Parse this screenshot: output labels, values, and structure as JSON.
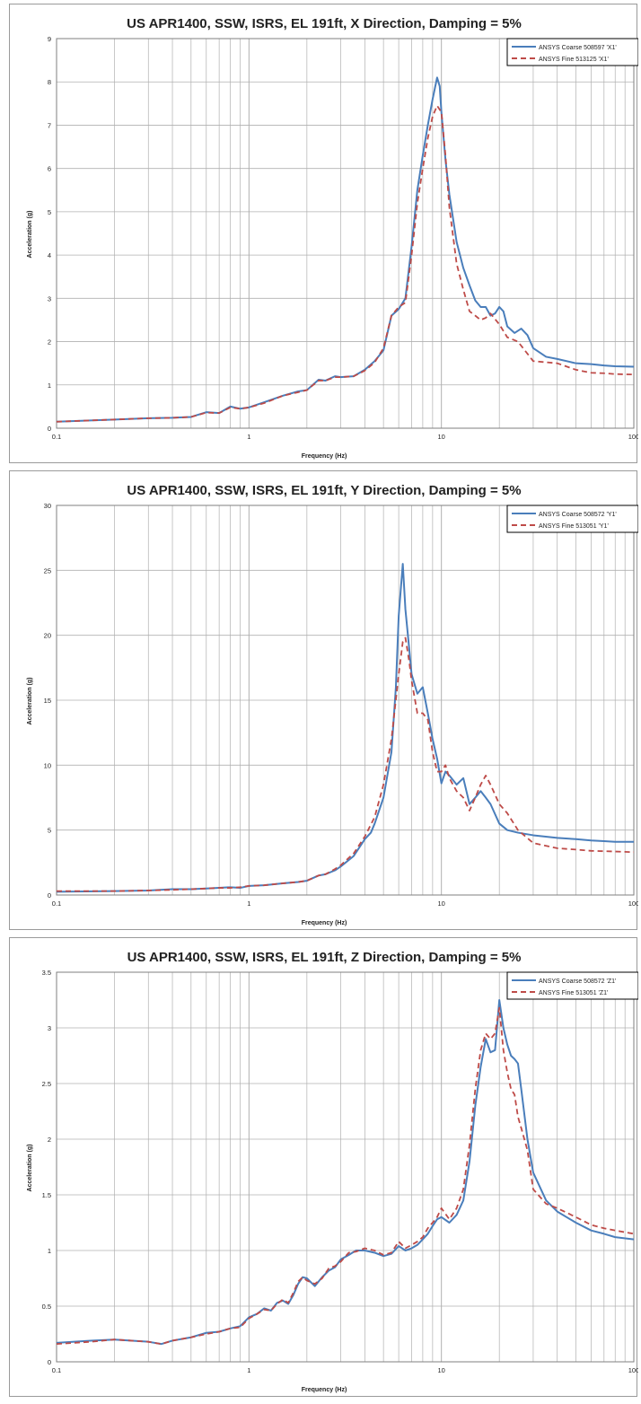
{
  "colors": {
    "coarse": "#4a7ebb",
    "fine": "#be4b48",
    "grid": "#b0b0b0"
  },
  "chart_data": [
    {
      "type": "line",
      "title": "US APR1400,  SSW, ISRS, EL 191ft, X Direction, Damping = 5%",
      "xlabel": "Frequency (Hz)",
      "ylabel": "Acceleration (g)",
      "xscale": "log",
      "xlim": [
        0.1,
        100
      ],
      "ylim": [
        0,
        9
      ],
      "xticks": [
        "0.1",
        "1",
        "10",
        "100"
      ],
      "yticks": [
        "0",
        "1",
        "2",
        "3",
        "4",
        "5",
        "6",
        "7",
        "8",
        "9"
      ],
      "legend_position": "top-right",
      "series": [
        {
          "name": "ANSYS Coarse 508597 'X1'",
          "style": "solid",
          "x": [
            0.1,
            0.2,
            0.3,
            0.4,
            0.5,
            0.6,
            0.7,
            0.8,
            0.9,
            1.0,
            1.2,
            1.5,
            1.8,
            2.0,
            2.3,
            2.5,
            2.8,
            3.0,
            3.5,
            4.0,
            4.5,
            5.0,
            5.5,
            6.0,
            6.5,
            7.0,
            7.5,
            8.0,
            8.5,
            9.0,
            9.5,
            9.8,
            10.0,
            10.5,
            11.0,
            12.0,
            13.0,
            14.0,
            15.0,
            16.0,
            17.0,
            18.0,
            19.0,
            20.0,
            21.0,
            22.0,
            24.0,
            26.0,
            28.0,
            30.0,
            35.0,
            40.0,
            50.0,
            60.0,
            70.0,
            80.0,
            100.0
          ],
          "y": [
            0.15,
            0.2,
            0.23,
            0.24,
            0.26,
            0.37,
            0.35,
            0.5,
            0.45,
            0.48,
            0.6,
            0.75,
            0.85,
            0.88,
            1.12,
            1.1,
            1.2,
            1.18,
            1.2,
            1.35,
            1.55,
            1.8,
            2.6,
            2.75,
            3.0,
            4.2,
            5.5,
            6.3,
            7.0,
            7.6,
            8.1,
            7.9,
            7.3,
            6.2,
            5.4,
            4.3,
            3.7,
            3.3,
            2.95,
            2.8,
            2.8,
            2.6,
            2.65,
            2.8,
            2.7,
            2.35,
            2.2,
            2.3,
            2.15,
            1.85,
            1.65,
            1.6,
            1.5,
            1.48,
            1.45,
            1.43,
            1.42
          ]
        },
        {
          "name": "ANSYS Fine 513125 'X1'",
          "style": "dashed",
          "x": [
            0.1,
            0.2,
            0.3,
            0.4,
            0.5,
            0.6,
            0.7,
            0.8,
            0.9,
            1.0,
            1.2,
            1.5,
            1.8,
            2.0,
            2.3,
            2.5,
            2.8,
            3.0,
            3.5,
            4.0,
            4.5,
            5.0,
            5.5,
            6.0,
            6.5,
            7.0,
            7.5,
            8.0,
            8.5,
            9.0,
            9.5,
            10.0,
            10.5,
            11.0,
            12.0,
            13.0,
            14.0,
            15.0,
            16.0,
            17.0,
            18.0,
            20.0,
            22.0,
            25.0,
            30.0,
            40.0,
            50.0,
            60.0,
            70.0,
            80.0,
            100.0
          ],
          "y": [
            0.15,
            0.2,
            0.23,
            0.24,
            0.26,
            0.36,
            0.35,
            0.48,
            0.45,
            0.48,
            0.58,
            0.75,
            0.83,
            0.88,
            1.1,
            1.1,
            1.18,
            1.18,
            1.2,
            1.33,
            1.52,
            1.85,
            2.6,
            2.8,
            2.9,
            4.0,
            5.2,
            6.0,
            6.7,
            7.2,
            7.45,
            7.3,
            6.3,
            5.1,
            3.8,
            3.2,
            2.7,
            2.6,
            2.5,
            2.55,
            2.65,
            2.4,
            2.1,
            2.0,
            1.55,
            1.5,
            1.35,
            1.28,
            1.27,
            1.25,
            1.24
          ]
        }
      ]
    },
    {
      "type": "line",
      "title": "US APR1400,  SSW, ISRS, EL 191ft, Y Direction, Damping = 5%",
      "xlabel": "Frequency (Hz)",
      "ylabel": "Acceleration (g)",
      "xscale": "log",
      "xlim": [
        0.1,
        100
      ],
      "ylim": [
        0,
        30
      ],
      "xticks": [
        "0.1",
        "1",
        "10",
        "100"
      ],
      "yticks": [
        "0",
        "5",
        "10",
        "15",
        "20",
        "25",
        "30"
      ],
      "legend_position": "top-right",
      "series": [
        {
          "name": "ANSYS Coarse 508572 'Y1'",
          "style": "solid",
          "x": [
            0.1,
            0.2,
            0.3,
            0.4,
            0.5,
            0.6,
            0.7,
            0.8,
            0.9,
            1.0,
            1.2,
            1.5,
            1.8,
            2.0,
            2.3,
            2.5,
            2.8,
            3.0,
            3.5,
            4.0,
            4.3,
            4.5,
            5.0,
            5.5,
            5.8,
            6.0,
            6.3,
            6.5,
            6.8,
            7.0,
            7.5,
            8.0,
            8.5,
            9.0,
            9.5,
            10.0,
            10.5,
            11.0,
            12.0,
            13.0,
            14.0,
            15.0,
            16.0,
            17.0,
            18.0,
            20.0,
            22.0,
            25.0,
            30.0,
            40.0,
            50.0,
            60.0,
            70.0,
            80.0,
            100.0
          ],
          "y": [
            0.25,
            0.3,
            0.35,
            0.45,
            0.45,
            0.5,
            0.55,
            0.6,
            0.55,
            0.7,
            0.75,
            0.9,
            1.0,
            1.1,
            1.5,
            1.6,
            1.9,
            2.2,
            3.0,
            4.3,
            4.8,
            5.5,
            7.5,
            11.0,
            16.0,
            21.5,
            25.5,
            22.0,
            19.0,
            17.0,
            15.5,
            16.0,
            14.0,
            12.0,
            10.5,
            8.6,
            9.5,
            9.2,
            8.5,
            9.0,
            7.0,
            7.5,
            8.0,
            7.5,
            7.0,
            5.5,
            5.0,
            4.8,
            4.6,
            4.4,
            4.3,
            4.2,
            4.15,
            4.1,
            4.1
          ]
        },
        {
          "name": "ANSYS Fine 513051 'Y1'",
          "style": "dashed",
          "x": [
            0.1,
            0.2,
            0.3,
            0.4,
            0.5,
            0.6,
            0.7,
            0.8,
            0.9,
            1.0,
            1.2,
            1.5,
            1.8,
            2.0,
            2.3,
            2.5,
            2.8,
            3.0,
            3.5,
            4.0,
            4.5,
            5.0,
            5.5,
            6.0,
            6.3,
            6.5,
            6.8,
            7.0,
            7.5,
            8.0,
            8.5,
            9.0,
            9.5,
            10.0,
            10.5,
            11.0,
            12.0,
            13.0,
            14.0,
            15.0,
            16.0,
            17.0,
            18.0,
            20.0,
            22.0,
            25.0,
            30.0,
            40.0,
            50.0,
            60.0,
            80.0,
            100.0
          ],
          "y": [
            0.3,
            0.3,
            0.35,
            0.4,
            0.45,
            0.5,
            0.55,
            0.55,
            0.6,
            0.7,
            0.75,
            0.9,
            1.0,
            1.1,
            1.5,
            1.6,
            2.0,
            2.3,
            3.2,
            4.5,
            6.0,
            8.5,
            12.0,
            17.0,
            19.5,
            19.8,
            18.0,
            16.5,
            14.0,
            14.0,
            13.5,
            11.0,
            9.5,
            9.5,
            10.0,
            9.0,
            8.0,
            7.5,
            6.5,
            7.5,
            8.5,
            9.2,
            8.5,
            7.0,
            6.3,
            5.0,
            4.0,
            3.6,
            3.5,
            3.4,
            3.35,
            3.3
          ]
        }
      ]
    },
    {
      "type": "line",
      "title": "US APR1400,  SSW, ISRS, EL 191ft, Z Direction, Damping = 5%",
      "xlabel": "Frequency (Hz)",
      "ylabel": "Acceleration (g)",
      "xscale": "log",
      "xlim": [
        0.1,
        100
      ],
      "ylim": [
        0,
        3.5
      ],
      "xticks": [
        "0.1",
        "1",
        "10",
        "100"
      ],
      "yticks": [
        "0",
        "0.5",
        "1",
        "1.5",
        "2",
        "2.5",
        "3",
        "3.5"
      ],
      "legend_position": "top-right",
      "series": [
        {
          "name": "ANSYS Coarse 508572 'Z1'",
          "style": "solid",
          "x": [
            0.1,
            0.15,
            0.2,
            0.3,
            0.35,
            0.4,
            0.5,
            0.6,
            0.7,
            0.8,
            0.9,
            1.0,
            1.1,
            1.2,
            1.3,
            1.4,
            1.5,
            1.6,
            1.7,
            1.8,
            1.9,
            2.0,
            2.2,
            2.4,
            2.6,
            2.8,
            3.0,
            3.3,
            3.6,
            4.0,
            4.5,
            5.0,
            5.5,
            6.0,
            6.5,
            7.0,
            7.5,
            8.0,
            8.5,
            9.0,
            9.5,
            10.0,
            11.0,
            12.0,
            13.0,
            14.0,
            15.0,
            16.0,
            17.0,
            18.0,
            19.0,
            20.0,
            21.0,
            22.0,
            23.0,
            24.0,
            25.0,
            26.0,
            28.0,
            30.0,
            35.0,
            40.0,
            50.0,
            60.0,
            70.0,
            80.0,
            100.0
          ],
          "y": [
            0.17,
            0.19,
            0.2,
            0.18,
            0.16,
            0.19,
            0.22,
            0.26,
            0.27,
            0.3,
            0.32,
            0.4,
            0.43,
            0.48,
            0.46,
            0.53,
            0.55,
            0.52,
            0.6,
            0.7,
            0.76,
            0.75,
            0.68,
            0.76,
            0.82,
            0.85,
            0.92,
            0.96,
            1.0,
            1.0,
            0.98,
            0.95,
            0.97,
            1.04,
            1.0,
            1.02,
            1.05,
            1.1,
            1.15,
            1.22,
            1.28,
            1.3,
            1.25,
            1.32,
            1.45,
            1.8,
            2.3,
            2.65,
            2.9,
            2.78,
            2.8,
            3.25,
            3.0,
            2.85,
            2.75,
            2.72,
            2.68,
            2.45,
            2.0,
            1.7,
            1.45,
            1.35,
            1.25,
            1.18,
            1.15,
            1.12,
            1.1
          ]
        },
        {
          "name": "ANSYS Fine 513051 'Z1'",
          "style": "dashed",
          "x": [
            0.1,
            0.15,
            0.2,
            0.3,
            0.35,
            0.4,
            0.5,
            0.6,
            0.7,
            0.8,
            0.9,
            1.0,
            1.1,
            1.2,
            1.3,
            1.4,
            1.5,
            1.6,
            1.7,
            1.8,
            1.9,
            2.0,
            2.2,
            2.4,
            2.6,
            2.8,
            3.0,
            3.3,
            3.6,
            4.0,
            4.5,
            5.0,
            5.5,
            6.0,
            6.5,
            7.0,
            7.5,
            8.0,
            8.5,
            9.0,
            9.5,
            10.0,
            11.0,
            12.0,
            13.0,
            14.0,
            15.0,
            16.0,
            17.0,
            18.0,
            19.0,
            20.0,
            21.0,
            22.0,
            23.0,
            24.0,
            25.0,
            26.0,
            28.0,
            30.0,
            35.0,
            40.0,
            50.0,
            60.0,
            70.0,
            80.0,
            100.0
          ],
          "y": [
            0.16,
            0.18,
            0.2,
            0.18,
            0.16,
            0.19,
            0.22,
            0.25,
            0.27,
            0.3,
            0.31,
            0.39,
            0.43,
            0.47,
            0.46,
            0.52,
            0.56,
            0.53,
            0.62,
            0.72,
            0.76,
            0.73,
            0.7,
            0.75,
            0.84,
            0.86,
            0.9,
            0.98,
            0.99,
            1.02,
            1.0,
            0.96,
            0.98,
            1.08,
            1.02,
            1.05,
            1.08,
            1.12,
            1.2,
            1.25,
            1.3,
            1.38,
            1.28,
            1.38,
            1.55,
            1.95,
            2.45,
            2.8,
            2.95,
            2.9,
            2.95,
            3.18,
            2.8,
            2.6,
            2.45,
            2.4,
            2.2,
            2.1,
            1.9,
            1.55,
            1.42,
            1.38,
            1.3,
            1.23,
            1.2,
            1.18,
            1.15
          ]
        }
      ]
    }
  ]
}
